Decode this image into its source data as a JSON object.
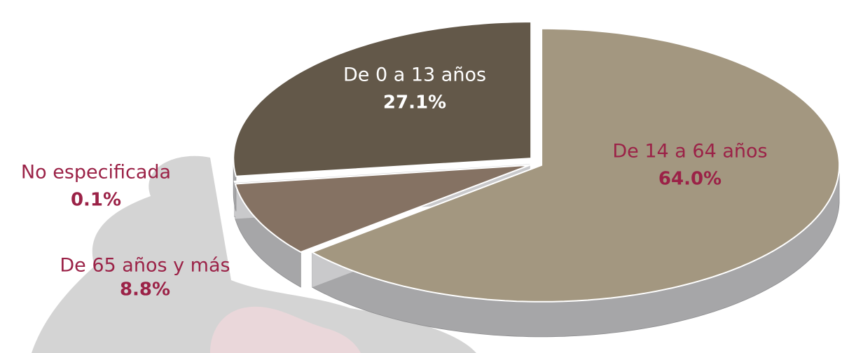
{
  "chart_data": {
    "type": "pie",
    "categories": [
      "De 14 a 64 años",
      "De 65 años y más",
      "No especificada",
      "De 0 a 13 años"
    ],
    "values": [
      64.0,
      8.8,
      0.1,
      27.1
    ],
    "value_labels": [
      "64.0%",
      "8.8%",
      "0.1%",
      "27.1%"
    ],
    "colors": [
      "#a39780",
      "#857263",
      "#a31f34",
      "#635849"
    ]
  }
}
